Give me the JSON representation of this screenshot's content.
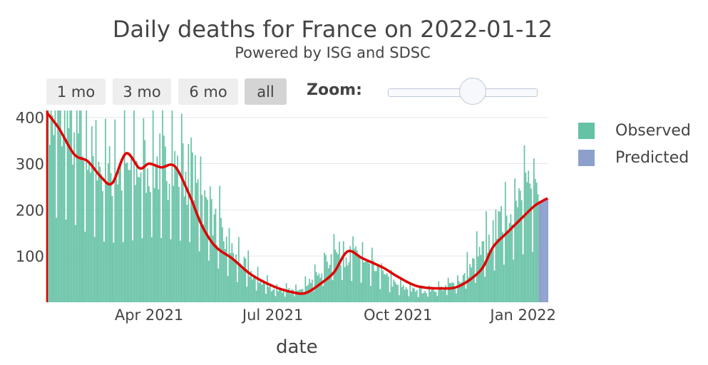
{
  "header": {
    "title": "Daily deaths for France on 2022-01-12",
    "subtitle": "Powered by ISG and SDSC"
  },
  "controls": {
    "buttons": [
      "1 mo",
      "3 mo",
      "6 mo",
      "all"
    ],
    "active_button": "all",
    "zoom_label": "Zoom:"
  },
  "colors": {
    "observed": "#66c2a5",
    "predicted": "#8da0cb",
    "smoothed_line": "#e00000",
    "grid": "#e6e6e6"
  },
  "chart_data": {
    "type": "bar",
    "title": "Daily deaths for France on 2022-01-12",
    "subtitle": "Powered by ISG and SDSC",
    "xlabel": "date",
    "ylabel": "",
    "x_range": [
      "2021-01-16",
      "2022-01-19"
    ],
    "ylim": [
      0,
      415
    ],
    "y_ticks": [
      100,
      200,
      300,
      400
    ],
    "x_ticks": [
      {
        "date": "2021-04-01",
        "label": "Apr 2021"
      },
      {
        "date": "2021-07-01",
        "label": "Jul 2021"
      },
      {
        "date": "2021-10-01",
        "label": "Oct 2021"
      },
      {
        "date": "2022-01-01",
        "label": "Jan 2022"
      }
    ],
    "grid": true,
    "legend": {
      "position": "right",
      "entries": [
        "Observed",
        "Predicted"
      ]
    },
    "observed_period": [
      "2021-01-16",
      "2022-01-12"
    ],
    "predicted_period": [
      "2022-01-13",
      "2022-01-19"
    ],
    "series": [
      {
        "name": "Observed",
        "kind": "bar",
        "x": [
          "2021-01-16",
          "2021-02-01",
          "2021-02-15",
          "2021-03-01",
          "2021-03-15",
          "2021-04-01",
          "2021-04-15",
          "2021-05-01",
          "2021-05-15",
          "2021-06-01",
          "2021-06-15",
          "2021-07-01",
          "2021-07-15",
          "2021-08-01",
          "2021-08-15",
          "2021-09-01",
          "2021-09-15",
          "2021-10-01",
          "2021-10-15",
          "2021-11-01",
          "2021-11-15",
          "2021-12-01",
          "2021-12-15",
          "2022-01-01",
          "2022-01-12"
        ],
        "values": [
          415,
          395,
          330,
          285,
          290,
          315,
          305,
          290,
          200,
          110,
          65,
          30,
          25,
          55,
          110,
          100,
          70,
          35,
          25,
          30,
          45,
          110,
          170,
          230,
          250
        ]
      },
      {
        "name": "Predicted",
        "kind": "bar",
        "x": [
          "2022-01-13",
          "2022-01-14",
          "2022-01-15",
          "2022-01-16",
          "2022-01-17",
          "2022-01-18",
          "2022-01-19"
        ],
        "values": [
          214,
          216,
          218,
          220,
          221,
          222,
          224
        ]
      },
      {
        "kind": "line",
        "x": [
          "2021-01-16",
          "2021-01-25",
          "2021-02-05",
          "2021-02-15",
          "2021-02-25",
          "2021-03-05",
          "2021-03-15",
          "2021-03-25",
          "2021-04-01",
          "2021-04-10",
          "2021-04-20",
          "2021-05-01",
          "2021-05-10",
          "2021-05-20",
          "2021-06-01",
          "2021-06-15",
          "2021-07-01",
          "2021-07-15",
          "2021-07-25",
          "2021-08-05",
          "2021-08-15",
          "2021-08-25",
          "2021-09-05",
          "2021-09-20",
          "2021-10-01",
          "2021-10-15",
          "2021-11-01",
          "2021-11-15",
          "2021-12-01",
          "2021-12-10",
          "2021-12-20",
          "2022-01-01",
          "2022-01-10",
          "2022-01-19"
        ],
        "values": [
          410,
          375,
          320,
          305,
          270,
          258,
          322,
          290,
          300,
          292,
          294,
          230,
          165,
          120,
          95,
          60,
          35,
          22,
          20,
          40,
          65,
          110,
          95,
          75,
          55,
          35,
          30,
          35,
          70,
          120,
          150,
          185,
          210,
          225
        ]
      }
    ]
  }
}
